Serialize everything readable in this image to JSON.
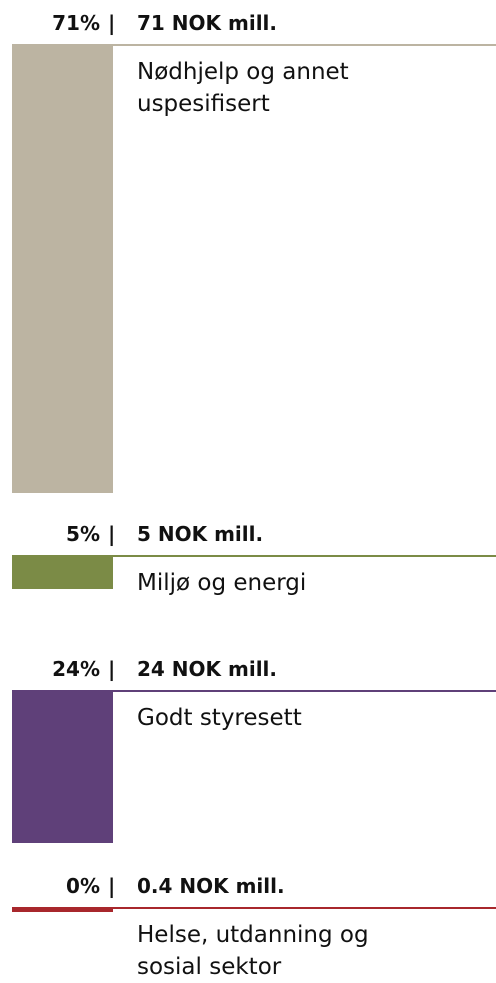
{
  "chart_data": {
    "type": "bar",
    "separator": "|",
    "categories": [
      "Nødhjelp og annet uspesifisert",
      "Miljø og energi",
      "Godt styresett",
      "Helse, utdanning og sosial sektor"
    ],
    "values": [
      71,
      5,
      24,
      0.4
    ],
    "value_labels": [
      "71%",
      "5%",
      "24%",
      "0%"
    ],
    "amounts": [
      71,
      5,
      24,
      0.4
    ],
    "amount_labels": [
      "71 NOK mill.",
      "5 NOK mill.",
      "24 NOK mill.",
      "0.4 NOK mill."
    ],
    "colors": [
      "#bcb4a2",
      "#7b8b46",
      "#5f4079",
      "#a8272c"
    ]
  }
}
